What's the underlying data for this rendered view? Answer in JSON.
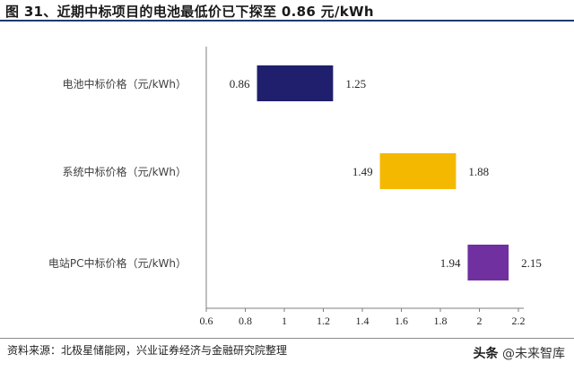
{
  "title": "图 31、近期中标项目的电池最低价已下探至 0.86 元/kWh",
  "source": "资料来源：北极星储能网，兴业证券经济与金融研究院整理",
  "watermark": {
    "brand": "头条",
    "handle": "@未来智库"
  },
  "chart_data": {
    "type": "bar",
    "orientation": "horizontal-floating",
    "categories": [
      "电池中标价格（元/kWh）",
      "系统中标价格（元/kWh）",
      "电站PC中标价格（元/kWh）"
    ],
    "series": [
      {
        "low": 0.86,
        "high": 1.25,
        "color": "#1f1f6e"
      },
      {
        "low": 1.49,
        "high": 1.88,
        "color": "#f5b800"
      },
      {
        "low": 1.94,
        "high": 2.15,
        "color": "#7030a0"
      }
    ],
    "low_labels": [
      "0.86",
      "1.49",
      "1.94"
    ],
    "high_labels": [
      "1.25",
      "1.88",
      "2.15"
    ],
    "xlim": [
      0.6,
      2.2
    ],
    "xticks": [
      "0.6",
      "0.8",
      "1",
      "1.2",
      "1.4",
      "1.6",
      "1.8",
      "2",
      "2.2"
    ],
    "xlabel": "",
    "ylabel": "",
    "grid": false
  }
}
